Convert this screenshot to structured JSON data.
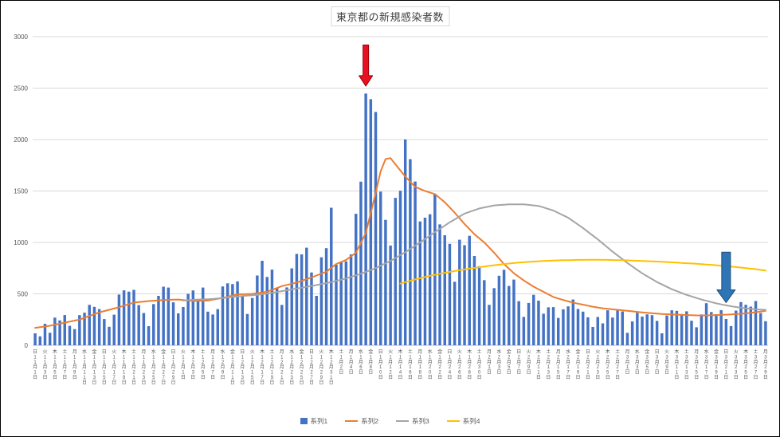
{
  "chart_data": {
    "type": "combo",
    "title": "東京都の新規感染者数",
    "ylim": [
      0,
      3000
    ],
    "y_ticks": [
      0,
      500,
      1000,
      1500,
      2000,
      2500,
      3000
    ],
    "axis_color": "#595959",
    "gridline_color": "#d9d9d9",
    "axis_line_color": "#bfbfbf",
    "label_every": 2,
    "first_weekday_index": 0,
    "weekdays": [
      "日",
      "月",
      "火",
      "水",
      "木",
      "金",
      "土"
    ],
    "month_suffix": "月",
    "day_suffix": "日",
    "months": [
      {
        "month": 11,
        "days": 30
      },
      {
        "month": 12,
        "days": 31
      },
      {
        "month": 1,
        "days": 31
      },
      {
        "month": 2,
        "days": 28
      },
      {
        "month": 3,
        "days": 29
      }
    ],
    "series": [
      {
        "name": "系列1",
        "type": "bar",
        "color": "#4472c4",
        "values": [
          116,
          87,
          209,
          122,
          269,
          242,
          294,
          189,
          157,
          293,
          317,
          393,
          374,
          352,
          255,
          180,
          298,
          493,
          534,
          522,
          539,
          391,
          314,
          186,
          401,
          481,
          570,
          561,
          418,
          311,
          372,
          500,
          533,
          449,
          561,
          327,
          299,
          352,
          572,
          602,
          595,
          621,
          480,
          305,
          460,
          678,
          822,
          664,
          736,
          556,
          392,
          563,
          748,
          888,
          884,
          949,
          708,
          481,
          856,
          944,
          1337,
          783,
          814,
          816,
          884,
          1278,
          1591,
          2447,
          2392,
          2268,
          1494,
          1219,
          970,
          1433,
          1502,
          2001,
          1809,
          1592,
          1204,
          1240,
          1274,
          1471,
          1175,
          1070,
          986,
          618,
          1026,
          973,
          1064,
          868,
          769,
          633,
          393,
          556,
          676,
          734,
          577,
          639,
          429,
          276,
          412,
          491,
          434,
          307,
          369,
          371,
          266,
          350,
          378,
          445,
          353,
          327,
          272,
          178,
          275,
          213,
          340,
          270,
          337,
          329,
          121,
          232,
          316,
          279,
          301,
          293,
          237,
          116,
          290,
          340,
          335,
          304,
          330,
          239,
          175,
          300,
          409,
          323,
          303,
          342,
          256,
          187,
          337,
          420,
          394,
          376,
          430,
          313,
          234
        ]
      },
      {
        "name": "系列2",
        "type": "line",
        "color": "#ed7d31",
        "points": [
          [
            0,
            170
          ],
          [
            3,
            190
          ],
          [
            6,
            220
          ],
          [
            9,
            250
          ],
          [
            13,
            320
          ],
          [
            17,
            370
          ],
          [
            20,
            415
          ],
          [
            23,
            430
          ],
          [
            26,
            440
          ],
          [
            29,
            445
          ],
          [
            32,
            430
          ],
          [
            35,
            435
          ],
          [
            38,
            460
          ],
          [
            41,
            495
          ],
          [
            44,
            500
          ],
          [
            47,
            520
          ],
          [
            50,
            575
          ],
          [
            53,
            610
          ],
          [
            56,
            660
          ],
          [
            59,
            715
          ],
          [
            61,
            790
          ],
          [
            63,
            830
          ],
          [
            65,
            900
          ],
          [
            67,
            1090
          ],
          [
            69,
            1480
          ],
          [
            70,
            1690
          ],
          [
            71,
            1810
          ],
          [
            72,
            1820
          ],
          [
            73,
            1760
          ],
          [
            75,
            1640
          ],
          [
            77,
            1540
          ],
          [
            79,
            1500
          ],
          [
            81,
            1470
          ],
          [
            83,
            1390
          ],
          [
            85,
            1290
          ],
          [
            87,
            1180
          ],
          [
            89,
            1080
          ],
          [
            91,
            1000
          ],
          [
            93,
            900
          ],
          [
            95,
            790
          ],
          [
            97,
            700
          ],
          [
            99,
            630
          ],
          [
            101,
            570
          ],
          [
            103,
            520
          ],
          [
            105,
            470
          ],
          [
            107,
            440
          ],
          [
            109,
            415
          ],
          [
            111,
            395
          ],
          [
            113,
            375
          ],
          [
            115,
            360
          ],
          [
            117,
            350
          ],
          [
            119,
            340
          ],
          [
            121,
            330
          ],
          [
            123,
            320
          ],
          [
            125,
            312
          ],
          [
            127,
            305
          ],
          [
            129,
            300
          ],
          [
            131,
            296
          ],
          [
            133,
            292
          ],
          [
            135,
            290
          ],
          [
            137,
            292
          ],
          [
            139,
            296
          ],
          [
            141,
            300
          ],
          [
            143,
            306
          ],
          [
            145,
            315
          ],
          [
            147,
            328
          ],
          [
            148,
            335
          ]
        ]
      },
      {
        "name": "系列3",
        "type": "line",
        "color": "#a5a5a5",
        "points": [
          [
            30,
            435
          ],
          [
            33,
            445
          ],
          [
            36,
            450
          ],
          [
            39,
            465
          ],
          [
            42,
            480
          ],
          [
            45,
            490
          ],
          [
            48,
            510
          ],
          [
            51,
            535
          ],
          [
            54,
            560
          ],
          [
            57,
            585
          ],
          [
            60,
            615
          ],
          [
            63,
            650
          ],
          [
            66,
            695
          ],
          [
            69,
            750
          ],
          [
            72,
            820
          ],
          [
            75,
            905
          ],
          [
            78,
            1000
          ],
          [
            81,
            1100
          ],
          [
            84,
            1195
          ],
          [
            87,
            1280
          ],
          [
            90,
            1330
          ],
          [
            93,
            1360
          ],
          [
            96,
            1370
          ],
          [
            99,
            1370
          ],
          [
            102,
            1355
          ],
          [
            105,
            1310
          ],
          [
            108,
            1240
          ],
          [
            111,
            1140
          ],
          [
            114,
            1030
          ],
          [
            117,
            910
          ],
          [
            120,
            800
          ],
          [
            123,
            700
          ],
          [
            126,
            615
          ],
          [
            129,
            545
          ],
          [
            132,
            490
          ],
          [
            135,
            445
          ],
          [
            138,
            408
          ],
          [
            140,
            388
          ],
          [
            142,
            372
          ],
          [
            144,
            360
          ],
          [
            146,
            350
          ],
          [
            148,
            345
          ]
        ]
      },
      {
        "name": "系列4",
        "type": "line",
        "color": "#ffc000",
        "points": [
          [
            74,
            600
          ],
          [
            77,
            640
          ],
          [
            80,
            675
          ],
          [
            83,
            705
          ],
          [
            86,
            730
          ],
          [
            89,
            752
          ],
          [
            92,
            772
          ],
          [
            95,
            790
          ],
          [
            98,
            804
          ],
          [
            101,
            814
          ],
          [
            104,
            822
          ],
          [
            107,
            827
          ],
          [
            110,
            830
          ],
          [
            113,
            831
          ],
          [
            116,
            830
          ],
          [
            119,
            827
          ],
          [
            122,
            822
          ],
          [
            125,
            816
          ],
          [
            128,
            809
          ],
          [
            131,
            801
          ],
          [
            134,
            792
          ],
          [
            137,
            782
          ],
          [
            140,
            770
          ],
          [
            143,
            756
          ],
          [
            146,
            740
          ],
          [
            148,
            726
          ]
        ]
      }
    ],
    "annotations": [
      {
        "name": "red-arrow",
        "shape": "arrow-down",
        "color": "#e81123",
        "outline": "#9c0006",
        "day_index": 67,
        "value_from": 2920,
        "value_to": 2520,
        "shaft_width": 7,
        "head_width": 17,
        "head_height": 13
      },
      {
        "name": "blue-arrow",
        "shape": "arrow-down",
        "color": "#2e75b6",
        "outline": "#1f4e79",
        "day_index": 140,
        "value_from": 905,
        "value_to": 415,
        "shaft_width": 11,
        "head_width": 23,
        "head_height": 16
      }
    ],
    "legend": {
      "position": "bottom",
      "items": [
        "系列1",
        "系列2",
        "系列3",
        "系列4"
      ]
    }
  }
}
